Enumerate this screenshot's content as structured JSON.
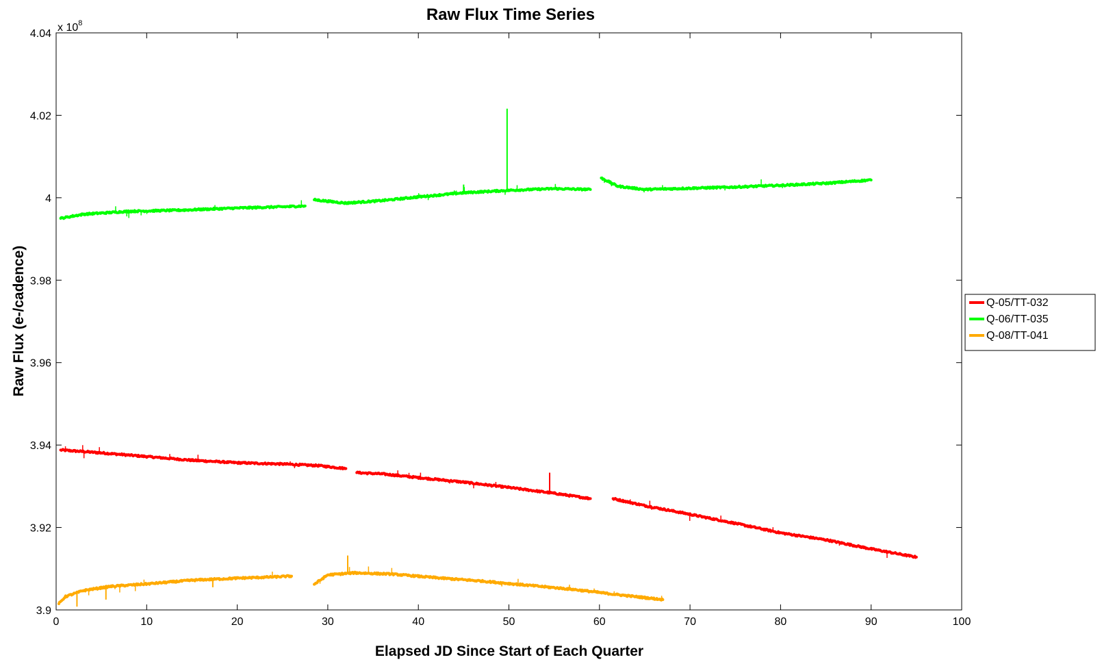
{
  "chart_data": {
    "type": "line",
    "title": "Raw Flux Time Series",
    "xlabel": "Elapsed JD Since Start of Each Quarter",
    "ylabel": "Raw Flux (e-/cadence)",
    "y_exponent": "x 10^8",
    "y_exponent_base": "x 10",
    "y_exponent_power": "8",
    "xlim": [
      0,
      100
    ],
    "ylim": [
      3.9,
      4.04
    ],
    "x_ticks": [
      0,
      10,
      20,
      30,
      40,
      50,
      60,
      70,
      80,
      90,
      100
    ],
    "x_tick_labels": [
      "0",
      "10",
      "20",
      "30",
      "40",
      "50",
      "60",
      "70",
      "80",
      "90",
      "100"
    ],
    "y_ticks": [
      3.9,
      3.92,
      3.94,
      3.96,
      3.98,
      4.0,
      4.02,
      4.04
    ],
    "y_tick_labels": [
      "3.9",
      "3.92",
      "3.94",
      "3.96",
      "3.98",
      "4",
      "4.02",
      "4.04"
    ],
    "grid": false,
    "legend_position": "right",
    "series": [
      {
        "name": "Q-05/TT-032",
        "color": "#ff0000",
        "segments": [
          {
            "x": [
              0.5,
              5,
              10,
              15,
              20,
              25,
              29,
              32
            ],
            "y": [
              3.9388,
              3.9381,
              3.9372,
              3.9363,
              3.9357,
              3.9354,
              3.935,
              3.9343
            ]
          },
          {
            "x": [
              33.2,
              36,
              40,
              45,
              50,
              55,
              59
            ],
            "y": [
              3.9333,
              3.933,
              3.9321,
              3.931,
              3.9297,
              3.9283,
              3.927
            ]
          },
          {
            "x": [
              61.5,
              65,
              70,
              75,
              80,
              85,
              90,
              95
            ],
            "y": [
              3.927,
              3.9253,
              3.9232,
              3.921,
              3.9187,
              3.917,
              3.9148,
              3.9128
            ]
          }
        ],
        "spikes": [
          {
            "x": 54.5,
            "y": 3.9333
          }
        ]
      },
      {
        "name": "Q-06/TT-035",
        "color": "#00ff00",
        "segments": [
          {
            "x": [
              0.5,
              3,
              8,
              14,
              20,
              25,
              27.5
            ],
            "y": [
              3.995,
              3.996,
              3.9967,
              3.997,
              3.9975,
              3.9978,
              3.998
            ]
          },
          {
            "x": [
              28.5,
              32,
              36,
              40,
              45,
              50,
              55,
              59
            ],
            "y": [
              3.9995,
              3.9987,
              3.9993,
              4.0002,
              4.0012,
              4.0018,
              4.0022,
              4.002
            ]
          },
          {
            "x": [
              60.2,
              62,
              65,
              70,
              75,
              80,
              85,
              90
            ],
            "y": [
              4.0048,
              4.0028,
              4.002,
              4.0023,
              4.0026,
              4.003,
              4.0035,
              4.0043
            ]
          }
        ],
        "spikes": [
          {
            "x": 49.8,
            "y": 4.0216
          },
          {
            "x": 45,
            "y": 4.0032
          }
        ]
      },
      {
        "name": "Q-08/TT-041",
        "color": "#ffaa00",
        "segments": [
          {
            "x": [
              0.3,
              1,
              3,
              6,
              10,
              15,
              20,
              24,
              26
            ],
            "y": [
              3.9015,
              3.9032,
              3.9047,
              3.9057,
              3.9063,
              3.9072,
              3.9077,
              3.908,
              3.9082
            ]
          },
          {
            "x": [
              28.5,
              30,
              33,
              37,
              42,
              47,
              52,
              57,
              62,
              67
            ],
            "y": [
              3.9062,
              3.9085,
              3.909,
              3.9087,
              3.9078,
              3.907,
              3.906,
              3.905,
              3.9037,
              3.9025
            ]
          }
        ],
        "spikes": [
          {
            "x": 32.2,
            "y": 3.9132
          },
          {
            "x": 2.3,
            "y": 3.9008
          },
          {
            "x": 5.5,
            "y": 3.9025
          },
          {
            "x": 17.3,
            "y": 3.9055
          }
        ]
      }
    ]
  }
}
